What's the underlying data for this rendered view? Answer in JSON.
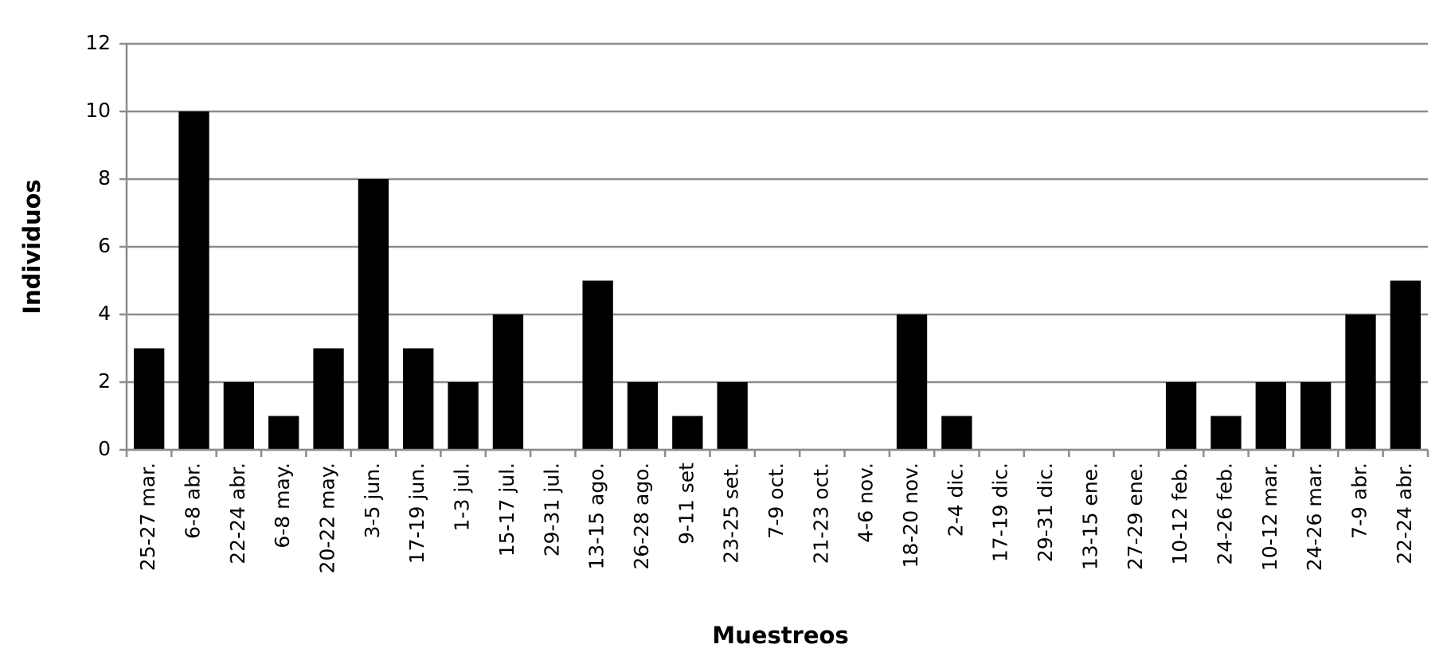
{
  "chart_data": {
    "type": "bar",
    "x_label": "Muestreos",
    "y_label": "Individuos",
    "categories": [
      "25-27 mar.",
      "6-8 abr.",
      "22-24 abr.",
      "6-8 may.",
      "20-22 may.",
      "3-5 jun.",
      "17-19 jun.",
      "1-3 jul.",
      "15-17 jul.",
      "29-31 jul.",
      "13-15 ago.",
      "26-28 ago.",
      "9-11 set",
      "23-25 set.",
      "7-9 oct.",
      "21-23 oct.",
      "4-6 nov.",
      "18-20 nov.",
      "2-4 dic.",
      "17-19 dic.",
      "29-31 dic.",
      "13-15 ene.",
      "27-29 ene.",
      "10-12 feb.",
      "24-26 feb.",
      "10-12 mar.",
      "24-26 mar.",
      "7-9 abr.",
      "22-24 abr."
    ],
    "values": [
      3,
      10,
      2,
      1,
      3,
      8,
      3,
      2,
      4,
      0,
      5,
      2,
      1,
      2,
      0,
      0,
      0,
      4,
      1,
      0,
      0,
      0,
      0,
      2,
      1,
      2,
      2,
      4,
      5
    ],
    "color": "#000000",
    "ylim": [
      0,
      12
    ],
    "yticks": [
      0,
      2,
      4,
      6,
      8,
      10,
      12
    ],
    "grid": true
  }
}
